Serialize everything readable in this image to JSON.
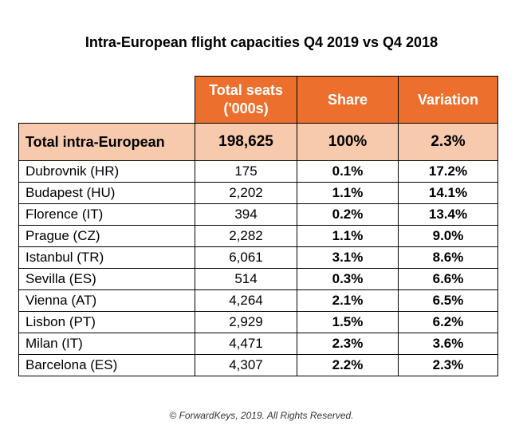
{
  "title": "Intra-European flight capacities Q4 2019 vs Q4 2018",
  "colors": {
    "header_bg": "#ec6f2d",
    "header_text": "#ffffff",
    "total_bg": "#f7c9ad"
  },
  "table": {
    "headers": [
      "",
      "Total seats ('000s)",
      "Share",
      "Variation"
    ],
    "total": {
      "name": "Total intra-European",
      "seats": "198,625",
      "share": "100%",
      "variation": "2.3%"
    },
    "rows": [
      {
        "name": "Dubrovnik (HR)",
        "seats": "175",
        "share": "0.1%",
        "variation": "17.2%"
      },
      {
        "name": "Budapest (HU)",
        "seats": "2,202",
        "share": "1.1%",
        "variation": "14.1%"
      },
      {
        "name": "Florence (IT)",
        "seats": "394",
        "share": "0.2%",
        "variation": "13.4%"
      },
      {
        "name": "Prague (CZ)",
        "seats": "2,282",
        "share": "1.1%",
        "variation": "9.0%"
      },
      {
        "name": "Istanbul (TR)",
        "seats": "6,061",
        "share": "3.1%",
        "variation": "8.6%"
      },
      {
        "name": "Sevilla (ES)",
        "seats": "514",
        "share": "0.3%",
        "variation": "6.6%"
      },
      {
        "name": "Vienna (AT)",
        "seats": "4,264",
        "share": "2.1%",
        "variation": "6.5%"
      },
      {
        "name": "Lisbon (PT)",
        "seats": "2,929",
        "share": "1.5%",
        "variation": "6.2%"
      },
      {
        "name": "Milan (IT)",
        "seats": "4,471",
        "share": "2.3%",
        "variation": "3.6%"
      },
      {
        "name": "Barcelona (ES)",
        "seats": "4,307",
        "share": "2.2%",
        "variation": "2.3%"
      }
    ]
  },
  "footer": "© ForwardKeys, 2019. All Rights Reserved."
}
